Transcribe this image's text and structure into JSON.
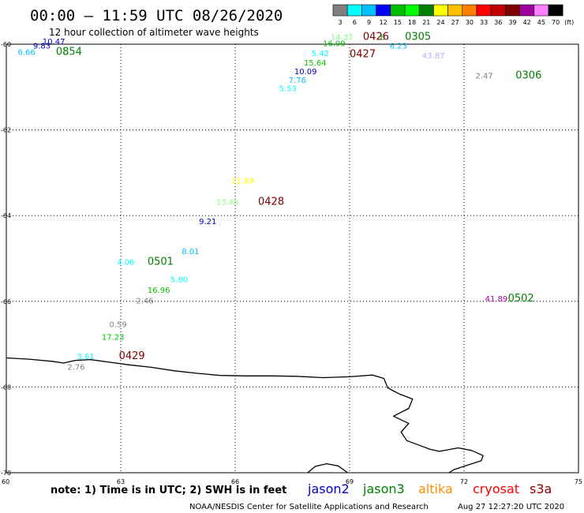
{
  "chart_data": {
    "type": "scatter",
    "title": "00:00 – 11:59 UTC 08/26/2020",
    "subtitle": "12 hour collection of altimeter wave heights",
    "xlim": [
      60,
      75
    ],
    "ylim": [
      -70,
      -60
    ],
    "x_ticks": [
      60,
      63,
      66,
      69,
      72,
      75
    ],
    "y_ticks": [
      -60,
      -62,
      -64,
      -66,
      -68,
      -70
    ],
    "grid": true,
    "scale": {
      "values": [
        "3",
        "6",
        "9",
        "12",
        "15",
        "18",
        "21",
        "24",
        "27",
        "30",
        "33",
        "36",
        "39",
        "42",
        "45",
        "70"
      ],
      "unit": "(ft)",
      "colors": [
        "#808080",
        "#00ffff",
        "#00c0ff",
        "#0000ff",
        "#00c000",
        "#00ff00",
        "#008000",
        "#ffff00",
        "#ffc000",
        "#ff8000",
        "#ff0000",
        "#c00000",
        "#800000",
        "#a000a0",
        "#ff80ff",
        "#000000"
      ]
    },
    "wave_heights": [
      {
        "value": "10.47",
        "lon": 60.95,
        "lat": -60.0,
        "color": "#0000c0"
      },
      {
        "value": "9.83",
        "lon": 60.7,
        "lat": -60.1,
        "color": "#0000c0"
      },
      {
        "value": "6.66",
        "lon": 60.3,
        "lat": -60.25,
        "color": "#00c0ff"
      },
      {
        "value": "14.32",
        "lon": 68.5,
        "lat": -59.9,
        "color": "#80ff80"
      },
      {
        "value": "6",
        "lon": 69.8,
        "lat": -59.9,
        "color": "#00c000"
      },
      {
        "value": "16.99",
        "lon": 68.3,
        "lat": -60.05,
        "color": "#00c000"
      },
      {
        "value": "6.23",
        "lon": 70.05,
        "lat": -60.1,
        "color": "#00c0ff"
      },
      {
        "value": "5.42",
        "lon": 68.0,
        "lat": -60.28,
        "color": "#00ffff"
      },
      {
        "value": "43.87",
        "lon": 70.9,
        "lat": -60.33,
        "color": "#b0b0ff"
      },
      {
        "value": "15.64",
        "lon": 67.8,
        "lat": -60.5,
        "color": "#00c000"
      },
      {
        "value": "10.09",
        "lon": 67.55,
        "lat": -60.7,
        "color": "#0000c0"
      },
      {
        "value": "2.47",
        "lon": 72.3,
        "lat": -60.8,
        "color": "#808080"
      },
      {
        "value": "7.76",
        "lon": 67.4,
        "lat": -60.9,
        "color": "#00c0ff"
      },
      {
        "value": "5.53",
        "lon": 67.15,
        "lat": -61.1,
        "color": "#00ffff"
      },
      {
        "value": "21.69",
        "lon": 65.9,
        "lat": -63.25,
        "color": "#ffff00"
      },
      {
        "value": "13.45",
        "lon": 65.5,
        "lat": -63.75,
        "color": "#80ff80"
      },
      {
        "value": "9.21",
        "lon": 65.05,
        "lat": -64.2,
        "color": "#0000c0"
      },
      {
        "value": "8.01",
        "lon": 64.6,
        "lat": -64.9,
        "color": "#00c0ff"
      },
      {
        "value": "4.06",
        "lon": 62.9,
        "lat": -65.15,
        "color": "#00ffff"
      },
      {
        "value": "5.80",
        "lon": 64.3,
        "lat": -65.55,
        "color": "#00ffff"
      },
      {
        "value": "16.96",
        "lon": 63.7,
        "lat": -65.8,
        "color": "#00c000"
      },
      {
        "value": "2.46",
        "lon": 63.4,
        "lat": -66.05,
        "color": "#808080"
      },
      {
        "value": "41.89",
        "lon": 72.55,
        "lat": -66.0,
        "color": "#a000a0"
      },
      {
        "value": "0.59",
        "lon": 62.7,
        "lat": -66.6,
        "color": "#808080"
      },
      {
        "value": "17.23",
        "lon": 62.5,
        "lat": -66.9,
        "color": "#00c000"
      },
      {
        "value": "3.61",
        "lon": 61.85,
        "lat": -67.35,
        "color": "#00ffff"
      },
      {
        "value": "2.76",
        "lon": 61.6,
        "lat": -67.6,
        "color": "#808080"
      }
    ],
    "pass_times": [
      {
        "value": "0854",
        "lon": 61.3,
        "lat": -60.25,
        "color": "#008000"
      },
      {
        "value": "0426",
        "lon": 69.35,
        "lat": -59.9,
        "color": "#800000"
      },
      {
        "value": "0305",
        "lon": 70.45,
        "lat": -59.9,
        "color": "#008000"
      },
      {
        "value": "0427",
        "lon": 69.0,
        "lat": -60.3,
        "color": "#800000"
      },
      {
        "value": "0306",
        "lon": 73.35,
        "lat": -60.8,
        "color": "#008000"
      },
      {
        "value": "0428",
        "lon": 66.6,
        "lat": -63.75,
        "color": "#800000"
      },
      {
        "value": "0501",
        "lon": 63.7,
        "lat": -65.15,
        "color": "#008000"
      },
      {
        "value": "0502",
        "lon": 73.15,
        "lat": -66.0,
        "color": "#008000"
      },
      {
        "value": "0429",
        "lon": 62.95,
        "lat": -67.35,
        "color": "#800000"
      }
    ],
    "coastline": [
      [
        60.0,
        -67.32
      ],
      [
        60.6,
        -67.35
      ],
      [
        61.2,
        -67.4
      ],
      [
        61.5,
        -67.44
      ],
      [
        61.8,
        -67.38
      ],
      [
        62.2,
        -67.36
      ],
      [
        62.7,
        -67.42
      ],
      [
        63.2,
        -67.48
      ],
      [
        63.8,
        -67.54
      ],
      [
        64.4,
        -67.62
      ],
      [
        65.0,
        -67.68
      ],
      [
        65.6,
        -67.73
      ],
      [
        66.3,
        -67.74
      ],
      [
        67.0,
        -67.74
      ],
      [
        67.6,
        -67.75
      ],
      [
        68.3,
        -67.78
      ],
      [
        69.0,
        -67.76
      ],
      [
        69.6,
        -67.72
      ],
      [
        69.9,
        -67.8
      ],
      [
        70.0,
        -68.02
      ],
      [
        70.3,
        -68.16
      ],
      [
        70.65,
        -68.28
      ],
      [
        70.55,
        -68.5
      ],
      [
        70.15,
        -68.68
      ],
      [
        70.55,
        -68.85
      ],
      [
        70.35,
        -69.05
      ],
      [
        70.5,
        -69.25
      ],
      [
        70.8,
        -69.35
      ],
      [
        71.1,
        -69.45
      ],
      [
        71.35,
        -69.5
      ],
      [
        71.85,
        -69.42
      ],
      [
        72.2,
        -69.48
      ],
      [
        72.5,
        -69.6
      ],
      [
        72.45,
        -69.72
      ],
      [
        72.1,
        -69.82
      ],
      [
        71.75,
        -69.92
      ],
      [
        71.6,
        -70.0
      ]
    ],
    "coastline2": [
      [
        67.9,
        -70.0
      ],
      [
        68.1,
        -69.85
      ],
      [
        68.4,
        -69.79
      ],
      [
        68.7,
        -69.84
      ],
      [
        68.95,
        -70.0
      ]
    ],
    "legend": [
      {
        "name": "jason2",
        "color": "#0000c0"
      },
      {
        "name": "jason3",
        "color": "#008000"
      },
      {
        "name": "altika",
        "color": "#ff8c00"
      },
      {
        "name": "cryosat",
        "color": "#ff0000"
      },
      {
        "name": "s3a",
        "color": "#800000"
      }
    ]
  },
  "footer": {
    "note": "note: 1) Time is in UTC; 2) SWH is in feet",
    "credit": "NOAA/NESDIS Center for Satellite Applications and Research",
    "timestamp": "Aug 27 12:27:20 UTC 2020"
  }
}
